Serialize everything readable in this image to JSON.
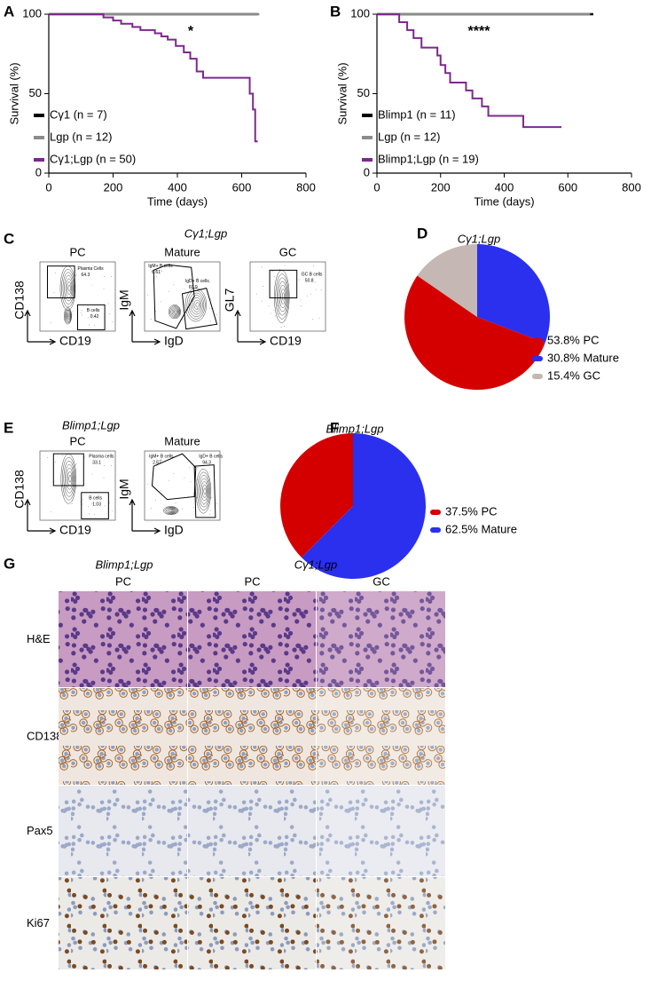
{
  "panel_labels": [
    "A",
    "B",
    "C",
    "D",
    "E",
    "F",
    "G"
  ],
  "chart_data": [
    {
      "type": "line",
      "annotation": "*",
      "y_label": "Survival (%)",
      "x_label": "Time (days)",
      "xlim": [
        0,
        800
      ],
      "xticks": [
        0,
        200,
        400,
        600,
        800
      ],
      "ylim": [
        0,
        100
      ],
      "yticks": [
        0,
        50,
        100
      ],
      "series": [
        {
          "name": "Cγ1 (n = 7)",
          "color": "#000000",
          "x": [
            0,
            650
          ],
          "values": [
            100,
            100
          ]
        },
        {
          "name": "Lgp (n = 12)",
          "color": "#8c8c8c",
          "x": [
            0,
            655
          ],
          "values": [
            100,
            100
          ]
        },
        {
          "name": "Cγ1;Lgp (n = 50)",
          "color": "#7b2a8c",
          "x": [
            0,
            170,
            170,
            200,
            200,
            225,
            225,
            260,
            260,
            285,
            285,
            330,
            330,
            350,
            350,
            370,
            370,
            395,
            395,
            420,
            420,
            440,
            440,
            460,
            460,
            480,
            480,
            625,
            625,
            635,
            635,
            642,
            642,
            650
          ],
          "values": [
            100,
            100,
            98,
            98,
            96,
            96,
            94,
            94,
            92,
            92,
            90,
            90,
            88,
            88,
            86,
            86,
            84,
            84,
            80,
            80,
            76,
            76,
            72,
            72,
            64,
            64,
            60,
            60,
            50,
            50,
            40,
            40,
            20,
            20
          ]
        }
      ]
    },
    {
      "type": "line",
      "annotation": "****",
      "y_label": "Survival (%)",
      "x_label": "Time (days)",
      "xlim": [
        0,
        800
      ],
      "xticks": [
        0,
        200,
        400,
        600,
        800
      ],
      "ylim": [
        0,
        100
      ],
      "yticks": [
        0,
        50,
        100
      ],
      "series": [
        {
          "name": "Blimp1 (n = 11)",
          "color": "#000000",
          "x": [
            0,
            680
          ],
          "values": [
            100,
            100
          ]
        },
        {
          "name": "Lgp (n = 12)",
          "color": "#8c8c8c",
          "x": [
            0,
            670
          ],
          "values": [
            100,
            100
          ]
        },
        {
          "name": "Blimp1;Lgp (n = 19)",
          "color": "#7b2a8c",
          "x": [
            0,
            70,
            70,
            95,
            95,
            115,
            115,
            140,
            140,
            190,
            190,
            200,
            200,
            215,
            215,
            230,
            230,
            280,
            280,
            300,
            300,
            330,
            330,
            350,
            350,
            460,
            460,
            580
          ],
          "values": [
            100,
            100,
            95,
            95,
            90,
            90,
            85,
            85,
            79,
            79,
            74,
            74,
            68,
            68,
            63,
            63,
            57,
            57,
            52,
            52,
            47,
            47,
            42,
            42,
            36,
            36,
            29,
            29
          ]
        }
      ]
    },
    {
      "type": "pie",
      "title": "Cγ1;Lgp",
      "values": [
        53.8,
        30.8,
        15.4
      ],
      "value_labels": [
        "53.8% PC",
        "30.8% Mature",
        "15.4% GC"
      ],
      "colors": [
        "#d40000",
        "#2b2fee",
        "#c5b7b3"
      ]
    },
    {
      "type": "pie",
      "title": "Blimp1;Lgp",
      "values": [
        37.5,
        62.5
      ],
      "value_labels": [
        "37.5% PC",
        "62.5% Mature"
      ],
      "colors": [
        "#d40000",
        "#2b2fee"
      ]
    }
  ],
  "flow_c": {
    "title": "Cγ1;Lgp",
    "plots": [
      {
        "title": "PC",
        "y_label": "CD138",
        "x_label": "CD19",
        "gates": [
          {
            "name": "Plasma Cells",
            "value": "64.3"
          },
          {
            "name": "B cells",
            "value": "0.42"
          }
        ]
      },
      {
        "title": "Mature",
        "y_label": "IgM",
        "x_label": "IgD",
        "gates": [
          {
            "name": "IgM+ B cells",
            "value": "6.61"
          },
          {
            "name": "IgD+ B cells",
            "value": "69.9"
          }
        ]
      },
      {
        "title": "GC",
        "y_label": "GL7",
        "x_label": "CD19",
        "gates": [
          {
            "name": "GC B cells",
            "value": "50.8"
          }
        ]
      }
    ]
  },
  "flow_e": {
    "title": "Blimp1;Lgp",
    "plots": [
      {
        "title": "PC",
        "y_label": "CD138",
        "x_label": "CD19",
        "gates": [
          {
            "name": "Plasma cells",
            "value": "33.1"
          },
          {
            "name": "B cells",
            "value": "1.03"
          }
        ]
      },
      {
        "title": "Mature",
        "y_label": "IgM",
        "x_label": "IgD",
        "gates": [
          {
            "name": "IgM+ B cells",
            "value": "2.67"
          },
          {
            "name": "IgD+ B cells",
            "value": "94.3"
          }
        ]
      }
    ]
  },
  "histology": {
    "group_labels": [
      "Blimp1;Lgp",
      "Cγ1;Lgp"
    ],
    "columns": [
      "PC",
      "PC",
      "GC"
    ],
    "rows": [
      "H&E",
      "CD138",
      "Pax5",
      "Ki67"
    ]
  }
}
